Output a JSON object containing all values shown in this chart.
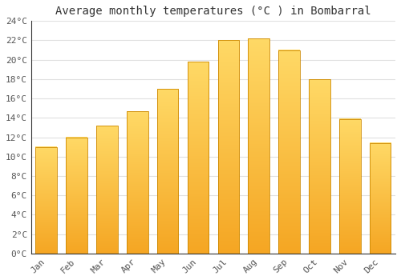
{
  "title": "Average monthly temperatures (°C ) in Bombarral",
  "months": [
    "Jan",
    "Feb",
    "Mar",
    "Apr",
    "May",
    "Jun",
    "Jul",
    "Aug",
    "Sep",
    "Oct",
    "Nov",
    "Dec"
  ],
  "values": [
    11.0,
    12.0,
    13.2,
    14.7,
    17.0,
    19.8,
    22.0,
    22.2,
    21.0,
    18.0,
    13.9,
    11.4
  ],
  "bar_color_top": "#FFD966",
  "bar_color_bottom": "#F5A623",
  "bar_edge_color": "#CC8800",
  "background_color": "#FFFFFF",
  "grid_color": "#E0E0E0",
  "ylim": [
    0,
    24
  ],
  "ytick_step": 2,
  "title_fontsize": 10,
  "tick_fontsize": 8,
  "tick_color": "#555555",
  "title_color": "#333333"
}
